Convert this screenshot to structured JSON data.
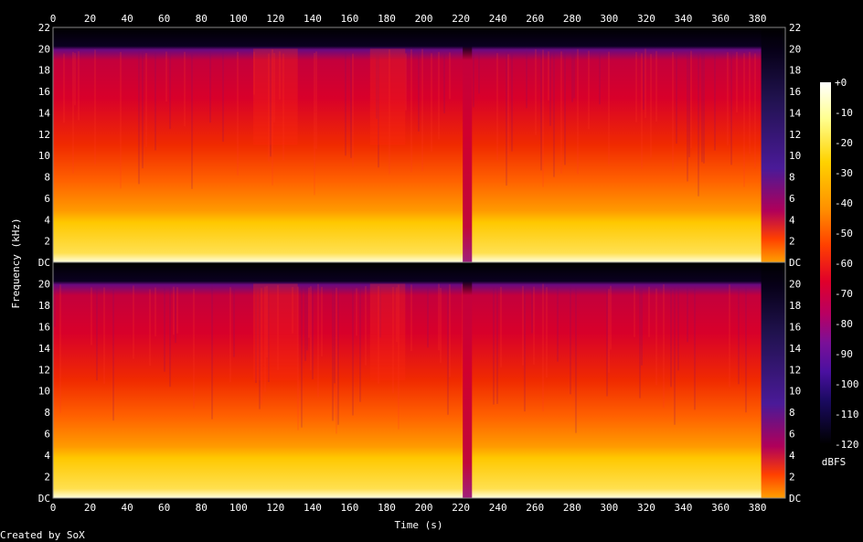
{
  "chart_data": {
    "type": "heatmap",
    "title": "",
    "xlabel": "Time (s)",
    "ylabel": "Frequency (kHz)",
    "xlim": [
      0,
      395
    ],
    "ylim": [
      0,
      22
    ],
    "x_ticks": [
      "0",
      "20",
      "40",
      "60",
      "80",
      "100",
      "120",
      "140",
      "160",
      "180",
      "200",
      "220",
      "240",
      "260",
      "280",
      "300",
      "320",
      "340",
      "360",
      "380"
    ],
    "y_ticks": [
      "DC",
      "2",
      "4",
      "6",
      "8",
      "10",
      "12",
      "14",
      "16",
      "18",
      "20",
      "22"
    ],
    "channels": 2,
    "colorbar": {
      "label": "dBFS",
      "ticks": [
        "+0",
        "-10",
        "-20",
        "-30",
        "-40",
        "-50",
        "-60",
        "-70",
        "-80",
        "-90",
        "-100",
        "-110",
        "-120"
      ],
      "range": [
        -120,
        0
      ]
    },
    "spectrum_profile": [
      {
        "band_khz": [
          0,
          4
        ],
        "level_dbfs": -20
      },
      {
        "band_khz": [
          4,
          8
        ],
        "level_dbfs": -40
      },
      {
        "band_khz": [
          8,
          12
        ],
        "level_dbfs": -55
      },
      {
        "band_khz": [
          12,
          20
        ],
        "level_dbfs": -65
      },
      {
        "band_khz": [
          20,
          22
        ],
        "level_dbfs": -120
      }
    ],
    "events": [
      {
        "time_s": [
          221,
          226
        ],
        "description": "low-level gap"
      },
      {
        "time_s": [
          382,
          395
        ],
        "description": "fade-out"
      }
    ],
    "credit": "Created by SoX"
  }
}
